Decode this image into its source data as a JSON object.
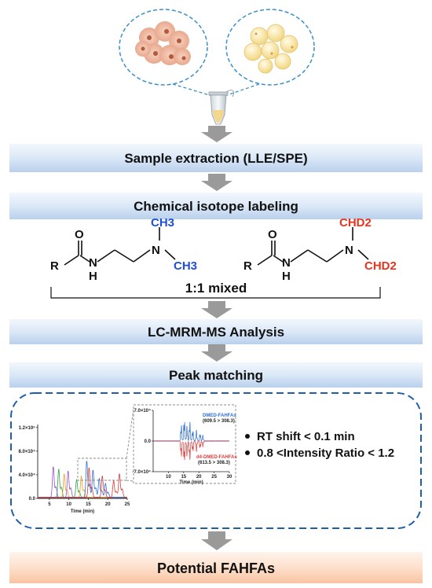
{
  "steps": {
    "extraction": "Sample extraction (LLE/SPE)",
    "labeling": "Chemical isotope labeling",
    "analysis": "LC-MRM-MS Analysis",
    "matching": "Peak matching",
    "result": "Potential FAHFAs"
  },
  "chemistry": {
    "left": {
      "r": "R",
      "o": "O",
      "n1": "N",
      "h": "H",
      "n2": "N",
      "me_top": "CH3",
      "me_bottom": "CH3"
    },
    "right": {
      "r": "R",
      "o": "O",
      "n1": "N",
      "h": "H",
      "n2": "N",
      "me_top": "CHD2",
      "me_bottom": "CHD2"
    },
    "mix_label": "1:1 mixed"
  },
  "criteria": {
    "rt_shift": "RT shift < 0.1 min",
    "intensity": "0.8 <Intensity Ratio < 1.2"
  },
  "chart_data": [
    {
      "type": "line",
      "xlabel": "Time (min)",
      "x_ticks": [
        5,
        10,
        15,
        20,
        25
      ],
      "y_ticks": [
        "0.0",
        "4.0×10⁴",
        "8.0×10⁴",
        "1.2×10⁵"
      ],
      "xlim": [
        2,
        25
      ],
      "ylim": [
        0,
        125000
      ],
      "series": [
        {
          "color": "#2aa84a",
          "peaks": [
            [
              7.4,
              48000
            ],
            [
              12.0,
              30000
            ]
          ]
        },
        {
          "color": "#9b4fd1",
          "peaks": [
            [
              6.0,
              52000
            ],
            [
              9.8,
              45000
            ]
          ]
        },
        {
          "color": "#e8a020",
          "peaks": [
            [
              8.8,
              40000
            ],
            [
              13.2,
              36000
            ]
          ]
        },
        {
          "color": "#2f6fd6",
          "peaks": [
            [
              14.6,
              62000
            ],
            [
              16.2,
              46000
            ],
            [
              17.8,
              32000
            ],
            [
              19.4,
              24000
            ]
          ]
        },
        {
          "color": "#e03a3a",
          "peaks": [
            [
              15.2,
              50000
            ],
            [
              18.6,
              36000
            ],
            [
              21.5,
              28000
            ],
            [
              23.0,
              40000
            ]
          ]
        }
      ]
    },
    {
      "type": "line",
      "xlabel": "Time (min)",
      "x_ticks": [
        10,
        15,
        20,
        25,
        30
      ],
      "y_ticks": [
        "7.0×10⁴",
        "0.0",
        "-7.0×10⁴"
      ],
      "xlim": [
        5,
        30
      ],
      "ylim": [
        -70000,
        70000
      ],
      "series": [
        {
          "name": "DMED-FAHFAs",
          "detail": "(609.5 > 308.3)",
          "color": "#2f6fd6",
          "direction": 1
        },
        {
          "name": "d4-DMED-FAHFAs",
          "detail": "(613.5 > 308.3)",
          "color": "#e03a3a",
          "direction": -1
        }
      ],
      "peaks": [
        [
          14.2,
          42000
        ],
        [
          15.2,
          58000
        ],
        [
          16.1,
          36000
        ],
        [
          17.0,
          50000
        ],
        [
          18.0,
          30000
        ],
        [
          19.2,
          26000
        ],
        [
          20.4,
          20000
        ],
        [
          21.3,
          14000
        ]
      ]
    }
  ]
}
